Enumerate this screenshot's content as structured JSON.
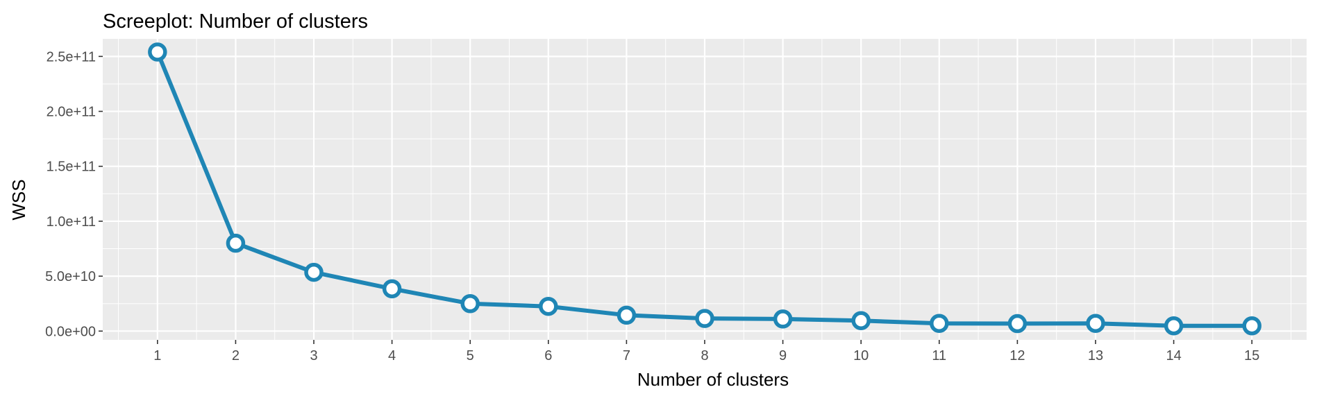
{
  "chart_data": {
    "type": "line",
    "title": "Screeplot: Number of clusters",
    "xlabel": "Number of clusters",
    "ylabel": "WSS",
    "x": [
      1,
      2,
      3,
      4,
      5,
      6,
      7,
      8,
      9,
      10,
      11,
      12,
      13,
      14,
      15
    ],
    "x_tick_labels": [
      "1",
      "2",
      "3",
      "4",
      "5",
      "6",
      "7",
      "8",
      "9",
      "10",
      "11",
      "12",
      "13",
      "14",
      "15"
    ],
    "y_ticks": [
      0,
      50000000000,
      100000000000,
      150000000000,
      200000000000,
      250000000000
    ],
    "y_tick_labels": [
      "0.0e+00",
      "5.0e+10",
      "1.0e+11",
      "1.5e+11",
      "2.0e+11",
      "2.5e+11"
    ],
    "series": [
      {
        "values": [
          254000000000,
          80000000000,
          53500000000,
          38500000000,
          25000000000,
          22500000000,
          14500000000,
          11500000000,
          11000000000,
          9500000000,
          7000000000,
          6800000000,
          7000000000,
          4800000000,
          4800000000
        ],
        "color": "#1f86b5"
      }
    ],
    "xlim": [
      0.3,
      15.7
    ],
    "ylim": [
      -8000000000,
      266000000000
    ],
    "grid": true,
    "background_color": "#ebebeb",
    "grid_color": "#ffffff",
    "legend": "none"
  }
}
